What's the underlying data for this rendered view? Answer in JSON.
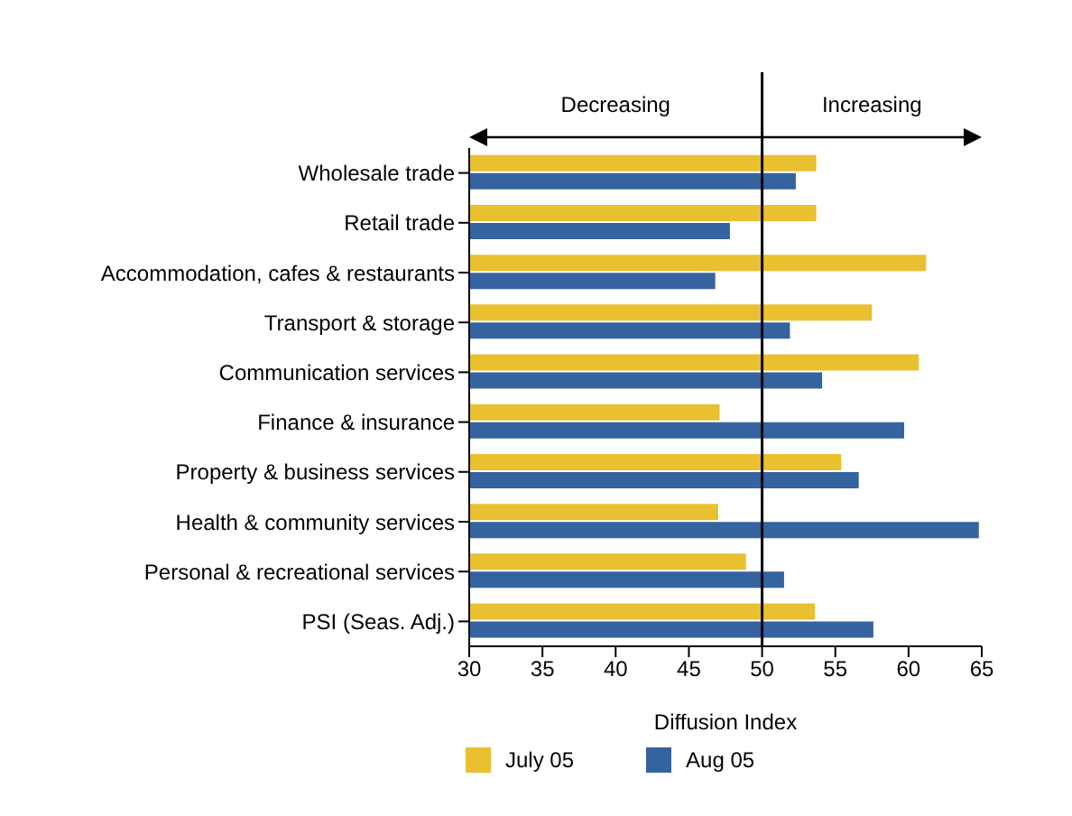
{
  "chart_data": {
    "type": "bar",
    "orientation": "horizontal",
    "xlabel": "Diffusion Index",
    "categories": [
      "Wholesale trade",
      "Retail trade",
      "Accommodation, cafes & restaurants",
      "Transport & storage",
      "Communication services",
      "Finance & insurance",
      "Property & business services",
      "Health & community services",
      "Personal & recreational services",
      "PSI  (Seas. Adj.)"
    ],
    "series": [
      {
        "name": "July 05",
        "color": "#e8c030",
        "values": [
          53.7,
          53.7,
          61.2,
          57.5,
          60.7,
          47.1,
          55.4,
          47.0,
          48.9,
          53.6
        ]
      },
      {
        "name": "Aug 05",
        "color": "#3463a0",
        "values": [
          52.3,
          47.8,
          46.8,
          51.9,
          54.1,
          59.7,
          56.6,
          64.8,
          51.5,
          57.6
        ]
      }
    ],
    "xlim": [
      30,
      65
    ],
    "xticks": [
      30,
      35,
      40,
      45,
      50,
      55,
      60,
      65
    ],
    "ref_lines": [
      {
        "axis": "x",
        "value": 50,
        "color": "#000000"
      }
    ],
    "annotations": [
      "Decreasing",
      "Increasing"
    ],
    "grid": false,
    "legend": "bottom"
  }
}
